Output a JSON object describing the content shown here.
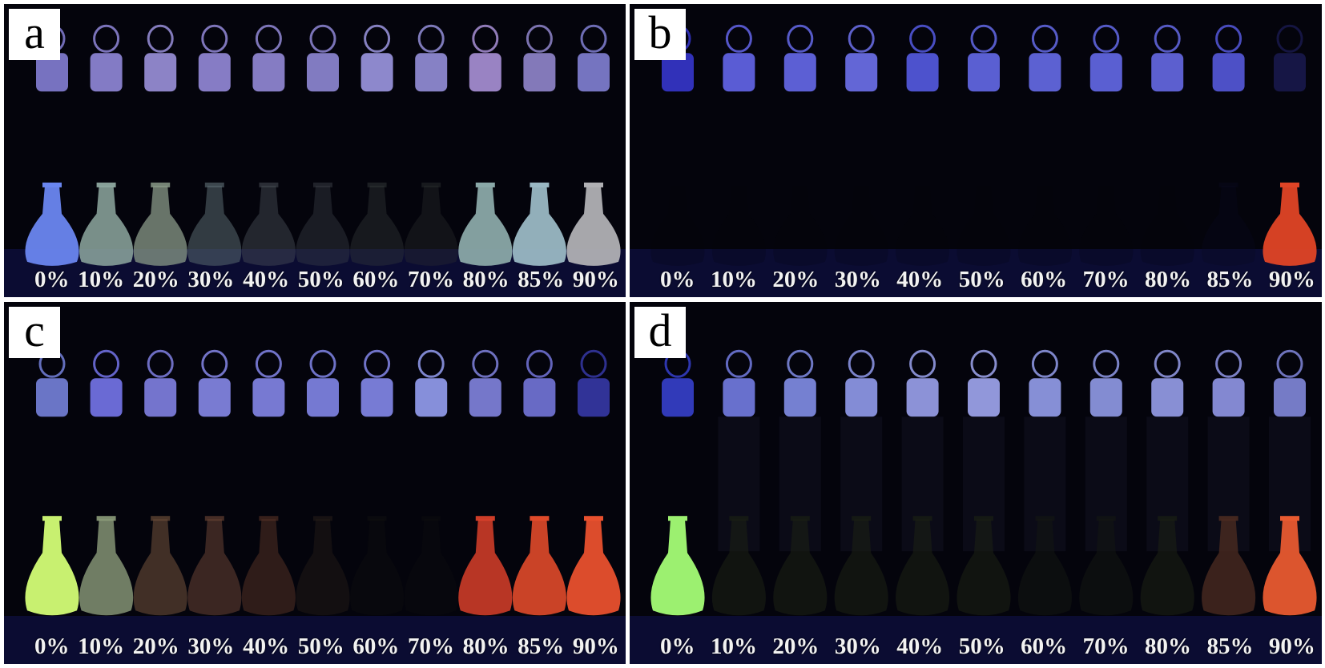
{
  "panels": [
    {
      "id": "a",
      "letter": "a",
      "labels": [
        "0%",
        "10%",
        "20%",
        "30%",
        "40%",
        "50%",
        "60%",
        "70%",
        "80%",
        "85%",
        "90%"
      ],
      "stopper_glow": [
        "#8c86e0",
        "#9a90e6",
        "#a49ae8",
        "#9e92e6",
        "#9c92e4",
        "#9890e2",
        "#a6a0ee",
        "#9e98e6",
        "#b49ae4",
        "#9a8ed8",
        "#8a88e0"
      ],
      "flask_fill": [
        "#6a86f0",
        "#8ea8a0",
        "#8a9a88",
        "#5a6a70",
        "#4a5058",
        "#3c4048",
        "#343a3a",
        "#2e3232",
        "#8aa8a8",
        "#9ab8c4",
        "#b0b0b4"
      ],
      "flask_opacity": [
        0.95,
        0.85,
        0.75,
        0.55,
        0.45,
        0.4,
        0.4,
        0.35,
        0.95,
        0.95,
        0.95
      ],
      "tube_visible": false
    },
    {
      "id": "b",
      "letter": "b",
      "labels": [
        "0%",
        "10%",
        "20%",
        "30%",
        "40%",
        "50%",
        "60%",
        "70%",
        "80%",
        "85%",
        "90%"
      ],
      "stopper_glow": [
        "#3a3ad8",
        "#6a6cf8",
        "#6c70f8",
        "#7478fa",
        "#5a60f0",
        "#6a70f6",
        "#6c72f6",
        "#6a70f6",
        "#6c70f2",
        "#5a5ee8",
        "#1a1a50"
      ],
      "flask_fill": [
        "#05050c",
        "#05050c",
        "#05050c",
        "#05050c",
        "#05050c",
        "#05050c",
        "#05050c",
        "#05050c",
        "#05050c",
        "#0a0a20",
        "#e04426"
      ],
      "flask_opacity": [
        0.2,
        0.2,
        0.2,
        0.2,
        0.2,
        0.2,
        0.2,
        0.2,
        0.2,
        0.3,
        0.95
      ],
      "tube_visible": false
    },
    {
      "id": "c",
      "letter": "c",
      "labels": [
        "0%",
        "10%",
        "20%",
        "30%",
        "40%",
        "50%",
        "60%",
        "70%",
        "80%",
        "85%",
        "90%"
      ],
      "stopper_glow": [
        "#7c8ae8",
        "#7c7cf8",
        "#8888f0",
        "#8e90f6",
        "#8c8ef6",
        "#8a8ef6",
        "#8c90f8",
        "#9ea8ff",
        "#8a8cec",
        "#7a7ce6",
        "#3a3cb0"
      ],
      "flask_fill": [
        "#c8f070",
        "#8c9c7a",
        "#6a4c38",
        "#6a4434",
        "#5a3426",
        "#2a201a",
        "#141412",
        "#101010",
        "#d8402a",
        "#e04a2a",
        "#e8502e"
      ],
      "flask_opacity": [
        1.0,
        0.8,
        0.6,
        0.55,
        0.5,
        0.4,
        0.3,
        0.3,
        0.85,
        0.9,
        0.95
      ],
      "tube_visible": false
    },
    {
      "id": "d",
      "letter": "d",
      "labels": [
        "0%",
        "10%",
        "20%",
        "30%",
        "40%",
        "50%",
        "60%",
        "70%",
        "80%",
        "85%",
        "90%"
      ],
      "stopper_glow": [
        "#3a44d8",
        "#7a84f0",
        "#8a96f4",
        "#9aa4fa",
        "#a4acfc",
        "#aab2ff",
        "#9ea8fa",
        "#9aa4f6",
        "#a0a8f8",
        "#9aa0f4",
        "#8a90e8"
      ],
      "flask_fill": [
        "#9cf070",
        "#1a2014",
        "#1a2014",
        "#1a2014",
        "#1a2014",
        "#1a2014",
        "#141812",
        "#141812",
        "#1a2014",
        "#4a2a20",
        "#e85a30"
      ],
      "flask_opacity": [
        1.0,
        0.6,
        0.6,
        0.6,
        0.6,
        0.6,
        0.5,
        0.5,
        0.6,
        0.8,
        0.95
      ],
      "tube_visible": true
    }
  ]
}
